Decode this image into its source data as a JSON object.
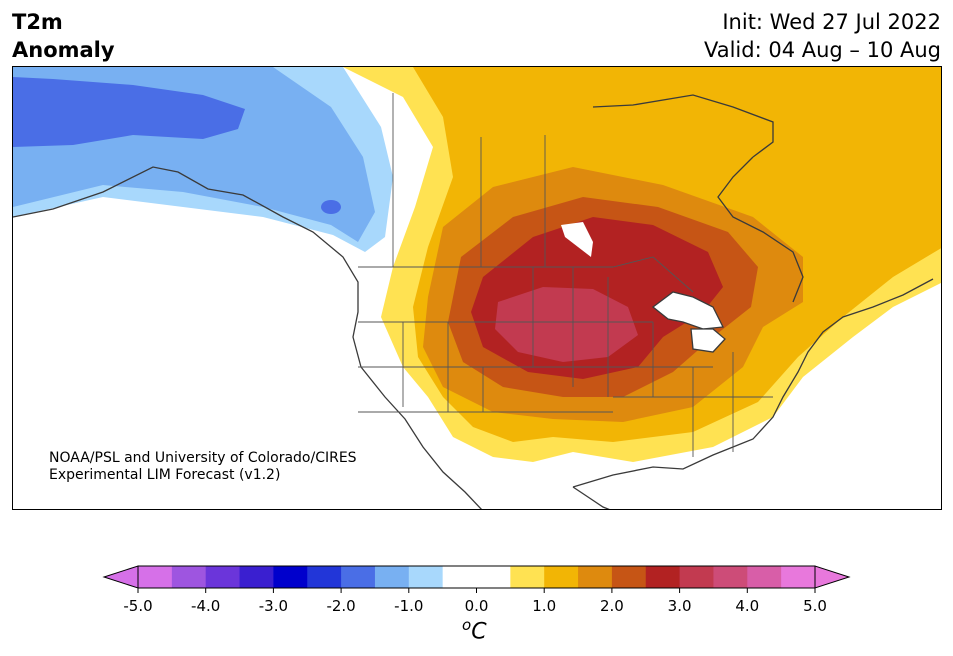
{
  "header": {
    "title_line1": "T2m",
    "title_line2": "Anomaly",
    "init": "Init: Wed 27 Jul 2022",
    "valid": "Valid: 04 Aug – 10 Aug"
  },
  "credit": {
    "line1": "NOAA/PSL and University of Colorado/CIRES",
    "line2": "Experimental LIM Forecast (v1.2)"
  },
  "colorbar": {
    "units_base": "C",
    "units_sup": "o",
    "ticks": [
      "-5.0",
      "-4.0",
      "-3.0",
      "-2.0",
      "-1.0",
      "0.0",
      "1.0",
      "2.0",
      "3.0",
      "4.0",
      "5.0"
    ],
    "colors": [
      "#d670e8",
      "#9e55e0",
      "#6b35da",
      "#3a1fd0",
      "#0000cc",
      "#2236d8",
      "#4a6ee6",
      "#78b0f2",
      "#a8d8fc",
      "#ffffff",
      "#ffffff",
      "#ffe252",
      "#f2b505",
      "#de8a0e",
      "#c65515",
      "#b22222",
      "#c23a50",
      "#cd4c78",
      "#d85ea8",
      "#e878dc"
    ],
    "under_color": "#d670e8",
    "over_color": "#e878dc"
  },
  "map": {
    "region": "North America",
    "colors": {
      "neg1": "#a8d8fc",
      "neg2": "#78b0f2",
      "neg3": "#4a6ee6",
      "pos1": "#ffe252",
      "pos2": "#f2b505",
      "pos3": "#de8a0e",
      "pos4": "#c65515",
      "pos5": "#b22222",
      "pos6": "#c23a50"
    }
  }
}
